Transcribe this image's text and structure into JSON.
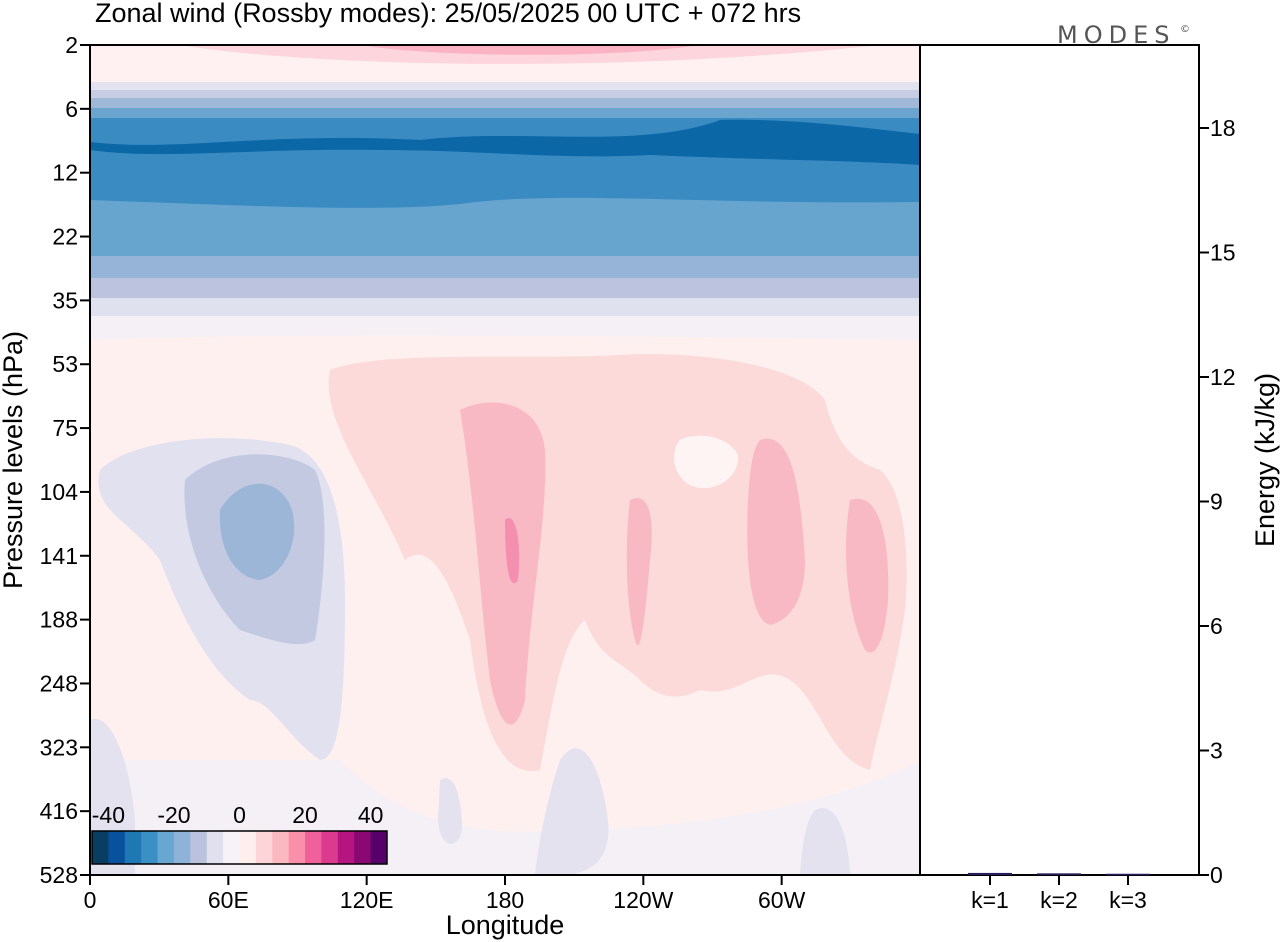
{
  "title": "Zonal wind (Rossby modes):  25/05/2025  00 UTC  + 072 hrs",
  "brand": "MODES",
  "brand_mark": "©",
  "chart_data": [
    {
      "type": "heatmap",
      "title": "Zonal wind (Rossby modes):  25/05/2025  00 UTC  + 072 hrs",
      "xlabel": "Longitude",
      "ylabel": "Pressure levels (hPa)",
      "x_ticks": [
        "0",
        "60E",
        "120E",
        "180",
        "120W",
        "60W"
      ],
      "x_tick_values": [
        0,
        60,
        120,
        180,
        240,
        300
      ],
      "xlim": [
        0,
        360
      ],
      "y_ticks": [
        "2",
        "6",
        "12",
        "22",
        "35",
        "53",
        "75",
        "104",
        "141",
        "188",
        "248",
        "323",
        "416",
        "528"
      ],
      "y_axis": "pressure levels, top to bottom",
      "colorbar": {
        "ticks": [
          "-40",
          "-20",
          "0",
          "20",
          "40"
        ],
        "range": [
          -45,
          45
        ],
        "step": 5,
        "colors": [
          "#0a3d62",
          "#08519c",
          "#1f78b4",
          "#3a8fc4",
          "#67a7d0",
          "#8fb3d8",
          "#bac2de",
          "#e0e0ef",
          "#f7f2f8",
          "#ffeeee",
          "#fdd5d8",
          "#fbb8c0",
          "#f98fab",
          "#f0609a",
          "#db3a8f",
          "#b5157f",
          "#8a0872",
          "#57006a"
        ]
      },
      "zonal_wind_bands_top_to_bottom": [
        {
          "levels": "2-4",
          "wind": 10
        },
        {
          "levels": "6-12",
          "wind": -30
        },
        {
          "levels": "12-22",
          "wind": -25
        },
        {
          "levels": "22-35",
          "wind": -10
        },
        {
          "levels": "53-416",
          "wind_range": [
            -20,
            15
          ]
        }
      ]
    },
    {
      "type": "bar",
      "categories": [
        "k=1",
        "k=2",
        "k=3"
      ],
      "values": [
        0.05,
        0.04,
        0.03
      ],
      "ylabel": "Energy (kJ/kg)",
      "ylim": [
        0,
        20
      ],
      "y_ticks": [
        "0",
        "3",
        "6",
        "9",
        "12",
        "15",
        "18"
      ],
      "y_tick_values": [
        0,
        3,
        6,
        9,
        12,
        15,
        18
      ]
    }
  ]
}
